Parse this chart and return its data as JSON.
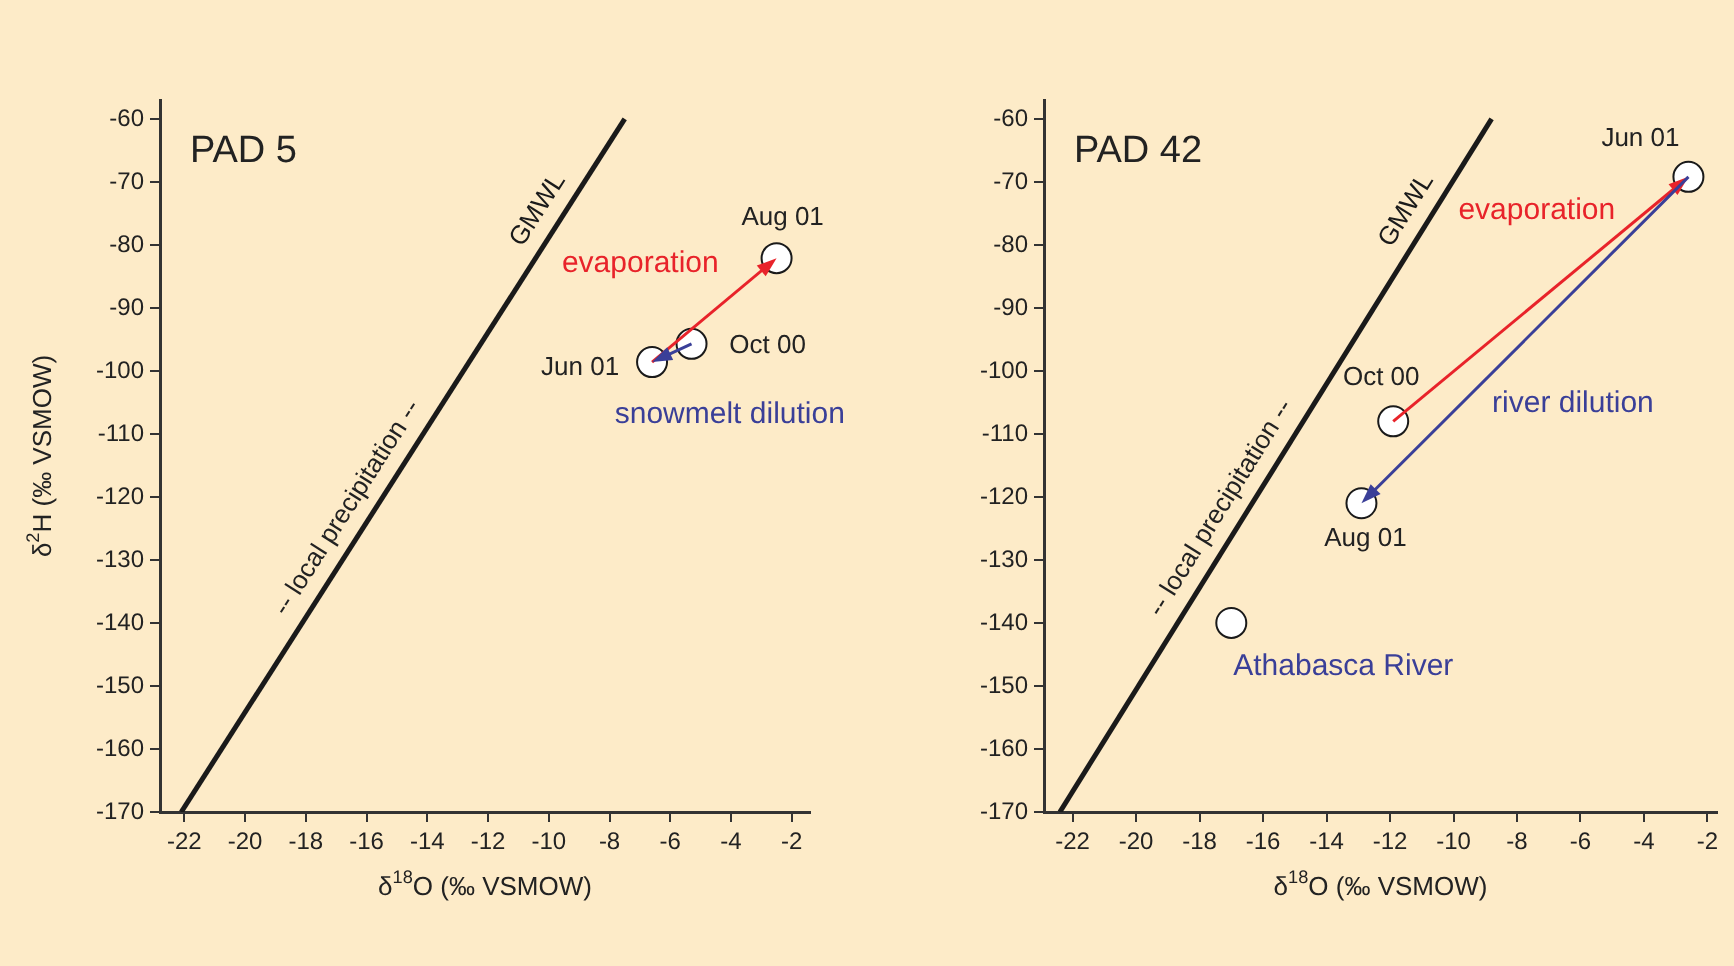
{
  "chart_data": [
    {
      "type": "scatter",
      "title": "PAD 5",
      "xlabel": "δ$^{18}$O (‰ VSMOW)",
      "ylabel": "δ$^{2}$H (‰ VSMOW)",
      "xlim": [
        -22.8,
        -1.4
      ],
      "ylim": [
        -170,
        -57
      ],
      "xticks": [
        -22,
        -20,
        -18,
        -16,
        -14,
        -12,
        -10,
        -8,
        -6,
        -4,
        -2
      ],
      "yticks": [
        -170,
        -160,
        -150,
        -140,
        -130,
        -120,
        -110,
        -100,
        -90,
        -80,
        -70,
        -60
      ],
      "grid": false,
      "legend": false,
      "series": [
        {
          "name": "GMWL",
          "type": "line",
          "marker": "none",
          "color": "#1a1a1a",
          "x": [
            -22.1,
            -7.5
          ],
          "values": [
            -170,
            -60
          ]
        },
        {
          "marker": "circle",
          "color": "#ffffff",
          "x": [
            -6.6,
            -5.3,
            -2.5
          ],
          "values": [
            -98.6,
            -95.7,
            -82.1
          ]
        }
      ],
      "annotations": [
        "-- local precipitation --",
        "Aug 01",
        "Oct 00",
        {
          "text": "Jun 01",
          "x": -6.6,
          "y": -98.6
        },
        {
          "text": "evaporation",
          "x": -2.5,
          "y": -82.1
        },
        {
          "text": "snowmelt dilution",
          "x": -6.6,
          "y": -98.6
        }
      ]
    },
    {
      "type": "scatter",
      "title": "PAD 42",
      "xlabel": "δ$^{18}$O (‰ VSMOW)",
      "xlim": [
        -22.9,
        -1.7
      ],
      "ylim": [
        -170,
        -57
      ],
      "xticks": [
        -22,
        -20,
        -18,
        -16,
        -14,
        -12,
        -10,
        -8,
        -6,
        -4,
        -2
      ],
      "yticks": [
        -170,
        -160,
        -150,
        -140,
        -130,
        -120,
        -110,
        -100,
        -90,
        -80,
        -70,
        -60
      ],
      "grid": false,
      "legend": false,
      "series": [
        {
          "name": "GMWL",
          "type": "line",
          "marker": "none",
          "color": "#1a1a1a",
          "x": [
            -22.4,
            -8.8
          ],
          "values": [
            -170,
            -60
          ]
        },
        {
          "marker": "circle",
          "color": "#ffffff",
          "x": [
            -2.6,
            -11.9,
            -12.9,
            -17.0
          ],
          "values": [
            -69.2,
            -108,
            -121,
            -140
          ]
        }
      ],
      "annotations": [
        "-- local precipitation --",
        "Jun 01",
        "Oct 00",
        "Aug 01",
        "Athabasca River",
        {
          "text": "evaporation",
          "x": -2.6,
          "y": -69.2
        },
        "river dilution"
      ]
    }
  ]
}
